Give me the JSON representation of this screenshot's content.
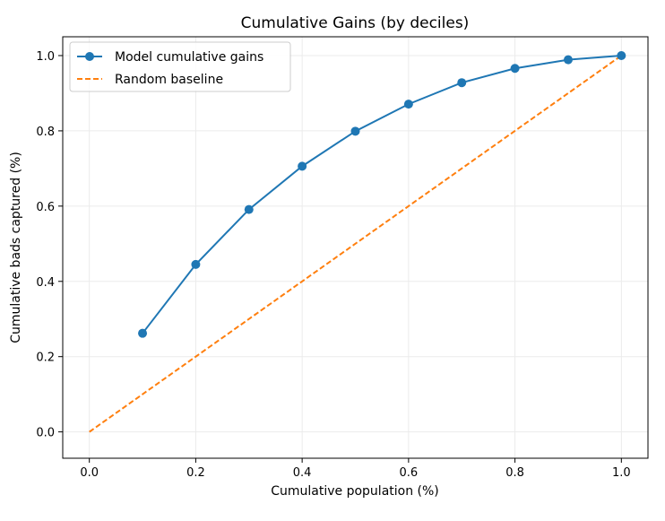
{
  "chart_data": {
    "type": "line",
    "title": "Cumulative Gains (by deciles)",
    "xlabel": "Cumulative population (%)",
    "ylabel": "Cumulative bads captured (%)",
    "xlim": [
      -0.05,
      1.05
    ],
    "ylim": [
      -0.07,
      1.05
    ],
    "xticks": [
      0.0,
      0.2,
      0.4,
      0.6,
      0.8,
      1.0
    ],
    "xtick_labels": [
      "0.0",
      "0.2",
      "0.4",
      "0.6",
      "0.8",
      "1.0"
    ],
    "yticks": [
      0.0,
      0.2,
      0.4,
      0.6,
      0.8,
      1.0
    ],
    "ytick_labels": [
      "0.0",
      "0.2",
      "0.4",
      "0.6",
      "0.8",
      "1.0"
    ],
    "grid": true,
    "legend_position": "top-left",
    "series": [
      {
        "name": "Model cumulative gains",
        "style": "solid-markers",
        "color": "#1f77b4",
        "x": [
          0.1,
          0.2,
          0.3,
          0.4,
          0.5,
          0.6,
          0.7,
          0.8,
          0.9,
          1.0
        ],
        "y": [
          0.262,
          0.445,
          0.591,
          0.706,
          0.799,
          0.871,
          0.928,
          0.966,
          0.989,
          1.0
        ]
      },
      {
        "name": "Random baseline",
        "style": "dashed",
        "color": "#ff7f0e",
        "x": [
          0.0,
          1.0
        ],
        "y": [
          0.0,
          1.0
        ]
      }
    ]
  }
}
